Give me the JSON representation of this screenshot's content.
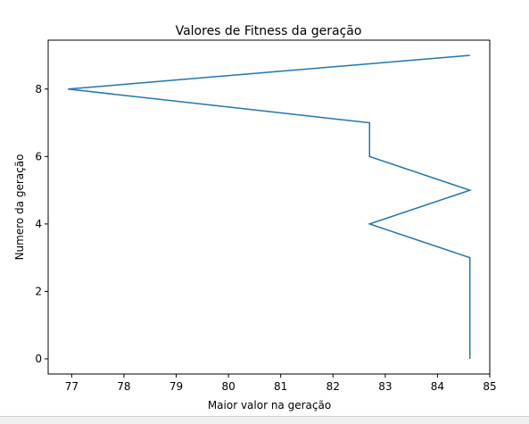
{
  "chart_data": {
    "type": "line",
    "title": "Valores de Fitness da geração",
    "xlabel": "Maior valor na geração",
    "ylabel": "Numero da geração",
    "xlim": [
      76.55,
      85.0
    ],
    "ylim": [
      -0.45,
      9.45
    ],
    "xticks": [
      77,
      78,
      79,
      80,
      81,
      82,
      83,
      84,
      85
    ],
    "yticks": [
      0,
      2,
      4,
      6,
      8
    ],
    "grid": false,
    "legend": "none",
    "series": [
      {
        "color": "#1f77b4",
        "points": [
          {
            "x": 84.62,
            "y": 0
          },
          {
            "x": 84.62,
            "y": 1
          },
          {
            "x": 84.62,
            "y": 2
          },
          {
            "x": 84.62,
            "y": 3
          },
          {
            "x": 82.7,
            "y": 4
          },
          {
            "x": 84.62,
            "y": 5
          },
          {
            "x": 82.7,
            "y": 6
          },
          {
            "x": 82.7,
            "y": 7
          },
          {
            "x": 76.93,
            "y": 8
          },
          {
            "x": 84.62,
            "y": 9
          }
        ]
      }
    ]
  }
}
